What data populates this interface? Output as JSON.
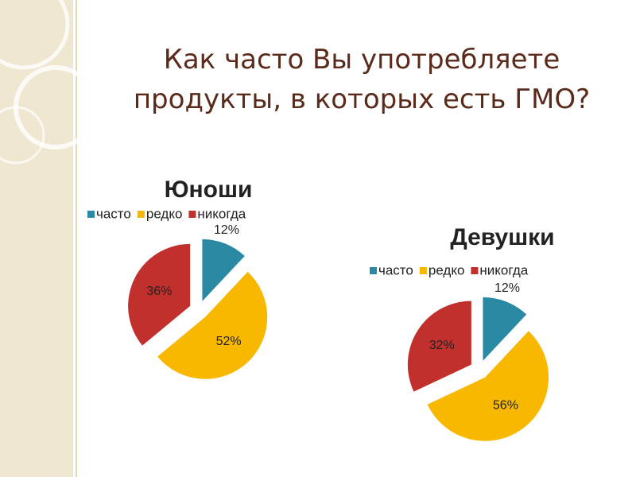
{
  "title": "Как часто Вы употребляете продукты, в которых есть ГМО?",
  "chart_data": [
    {
      "type": "pie",
      "title": "Юноши",
      "categories": [
        "часто",
        "редко",
        "никогда"
      ],
      "values": [
        12,
        52,
        36
      ],
      "value_labels": [
        "12%",
        "52%",
        "36%"
      ],
      "colors": [
        "#2a8aa3",
        "#f8b800",
        "#c1302d"
      ]
    },
    {
      "type": "pie",
      "title": "Девушки",
      "categories": [
        "часто",
        "редко",
        "никогда"
      ],
      "values": [
        12,
        56,
        32
      ],
      "value_labels": [
        "12%",
        "56%",
        "32%"
      ],
      "colors": [
        "#2a8aa3",
        "#f8b800",
        "#c1302d"
      ]
    }
  ]
}
